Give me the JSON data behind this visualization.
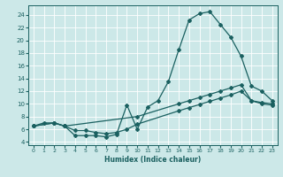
{
  "bg_color": "#cce8e8",
  "line_color": "#1a6060",
  "grid_color": "#ffffff",
  "xlabel": "Humidex (Indice chaleur)",
  "xlim": [
    -0.5,
    23.5
  ],
  "ylim": [
    3.5,
    25.5
  ],
  "xticks": [
    0,
    1,
    2,
    3,
    4,
    5,
    6,
    7,
    8,
    9,
    10,
    11,
    12,
    13,
    14,
    15,
    16,
    17,
    18,
    19,
    20,
    21,
    22,
    23
  ],
  "yticks": [
    4,
    6,
    8,
    10,
    12,
    14,
    16,
    18,
    20,
    22,
    24
  ],
  "curve1_x": [
    0,
    1,
    2,
    3,
    4,
    5,
    6,
    7,
    8,
    9,
    10,
    11,
    12,
    13,
    14,
    15,
    16,
    17,
    18,
    19,
    20,
    21,
    22,
    23
  ],
  "curve1_y": [
    6.5,
    7.0,
    7.0,
    6.5,
    5.0,
    5.0,
    5.0,
    4.8,
    5.2,
    9.8,
    6.0,
    9.5,
    10.5,
    13.5,
    18.5,
    23.2,
    24.2,
    24.5,
    22.5,
    20.5,
    17.5,
    12.8,
    12.0,
    10.5
  ],
  "curve2_x": [
    0,
    2,
    3,
    10,
    14,
    15,
    16,
    17,
    18,
    19,
    20,
    21,
    22,
    23
  ],
  "curve2_y": [
    6.5,
    7.0,
    6.5,
    8.0,
    10.0,
    10.5,
    11.0,
    11.5,
    12.0,
    12.5,
    13.0,
    10.5,
    10.2,
    10.0
  ],
  "curve3_x": [
    0,
    2,
    3,
    4,
    5,
    6,
    7,
    8,
    9,
    10,
    14,
    15,
    16,
    17,
    18,
    19,
    20,
    21,
    22,
    23
  ],
  "curve3_y": [
    6.5,
    7.0,
    6.5,
    5.8,
    5.8,
    5.5,
    5.3,
    5.5,
    6.0,
    6.8,
    8.9,
    9.4,
    9.9,
    10.4,
    10.9,
    11.4,
    12.0,
    10.5,
    10.0,
    9.8
  ]
}
